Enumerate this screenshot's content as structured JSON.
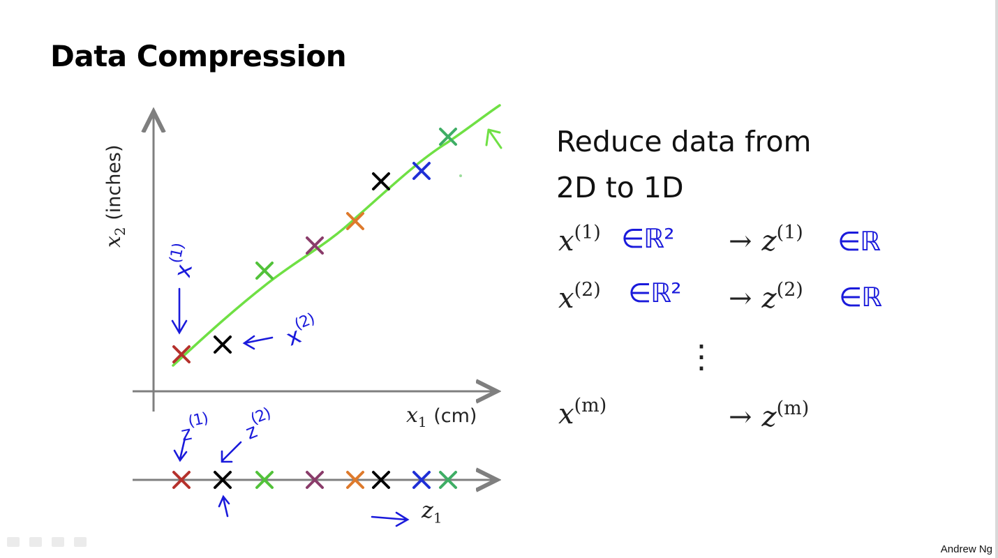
{
  "slide": {
    "title": "Data Compression",
    "heading_line1": "Reduce data from",
    "heading_line2": "2D to 1D",
    "footer": "Andrew Ng"
  },
  "plot": {
    "ylabel_var": "x",
    "ylabel_sub": "2",
    "ylabel_unit": "(inches)",
    "xlabel_var": "x",
    "xlabel_sub": "1",
    "xlabel_unit": "(cm)",
    "annotations": {
      "x1": "x",
      "x1_sup": "(1)",
      "x2": "x",
      "x2_sup": "(2)",
      "z1": "z",
      "z1_sup": "(1)",
      "z2": "z",
      "z2_sup": "(2)"
    },
    "line_axis_var": "z",
    "line_axis_sub": "1"
  },
  "mappings": [
    {
      "x": "x",
      "sup": "(1)",
      "space": "∈ℝ²",
      "z": "z",
      "zsup": "(1)",
      "zspace": "∈ℝ"
    },
    {
      "x": "x",
      "sup": "(2)",
      "space": "∈ℝ²",
      "z": "z",
      "zsup": "(2)",
      "zspace": "∈ℝ"
    },
    {
      "x": "x",
      "sup": "(m)",
      "space": "",
      "z": "z",
      "zsup": "(m)",
      "zspace": ""
    }
  ],
  "arrow_symbol": "→",
  "ellipsis": "⋮",
  "chart_data": {
    "type": "scatter",
    "xlabel": "x1 (cm)",
    "ylabel": "x2 (inches)",
    "points_2d": [
      {
        "color": "#b5312c"
      },
      {
        "color": "#000000"
      },
      {
        "color": "#52c23a"
      },
      {
        "color": "#8a3c6a"
      },
      {
        "color": "#de7a2c"
      },
      {
        "color": "#000000"
      },
      {
        "color": "#1f2fd6"
      },
      {
        "color": "#3fae65"
      }
    ],
    "projection_line_color": "#6fe044"
  }
}
